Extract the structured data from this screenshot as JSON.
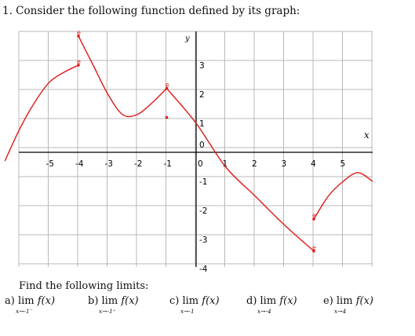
{
  "question": "1. Consider the following function defined by its graph:",
  "find_text": "Find the following limits:",
  "limits": [
    {
      "label": "a) lim",
      "func": "f(x)",
      "sub": "x→-1⁻"
    },
    {
      "label": "b) lim",
      "func": "f(x)",
      "sub": "x→-1⁺"
    },
    {
      "label": "c) lim",
      "func": "f(x)",
      "sub": "x→-1"
    },
    {
      "label": "d) lim",
      "func": "f(x)",
      "sub": "x→-4"
    },
    {
      "label": "e) lim",
      "func": "f(x)",
      "sub": "x→4"
    }
  ],
  "chart_data": {
    "type": "line",
    "xlabel": "x",
    "ylabel": "y",
    "xlim": [
      -6.5,
      6
    ],
    "ylim": [
      -4.5,
      4
    ],
    "x_ticks": [
      "-5",
      "-4",
      "-3",
      "-2",
      "-1",
      "0",
      "1",
      "2",
      "3",
      "4",
      "5"
    ],
    "y_ticks": [
      "3",
      "2",
      "1",
      "0",
      "-1",
      "-2",
      "-3",
      "-4"
    ],
    "grid": true,
    "curve_color": "#e01818",
    "series": [
      {
        "x": [
          -6.5,
          -6,
          -5.5,
          -5,
          -4.5,
          -4
        ],
        "values": [
          -0.3,
          0.8,
          1.7,
          2.4,
          2.75,
          3.0
        ]
      },
      {
        "x": [
          -4,
          -3.5,
          -3,
          -2.5,
          -2,
          -1.5,
          -1
        ],
        "values": [
          4.0,
          3.0,
          2.0,
          1.3,
          1.3,
          1.7,
          2.2
        ]
      },
      {
        "x": [
          -1,
          0,
          1,
          2,
          3,
          4
        ],
        "values": [
          2.2,
          1.0,
          -0.5,
          -1.5,
          -2.5,
          -3.4
        ]
      },
      {
        "x": [
          4,
          4.5,
          5,
          5.5,
          6
        ],
        "values": [
          -2.3,
          -1.5,
          -1.0,
          -0.7,
          -1.0
        ]
      }
    ],
    "points": [
      {
        "x": -4,
        "y": 4.0,
        "label": "e"
      },
      {
        "x": -4,
        "y": 3.0,
        "label": "e"
      },
      {
        "x": -1,
        "y": 2.2,
        "label": "e"
      },
      {
        "x": -1,
        "y": 1.2,
        "label": ""
      },
      {
        "x": 4,
        "y": -2.3,
        "label": "e"
      },
      {
        "x": 4,
        "y": -3.4,
        "label": "e"
      }
    ]
  }
}
